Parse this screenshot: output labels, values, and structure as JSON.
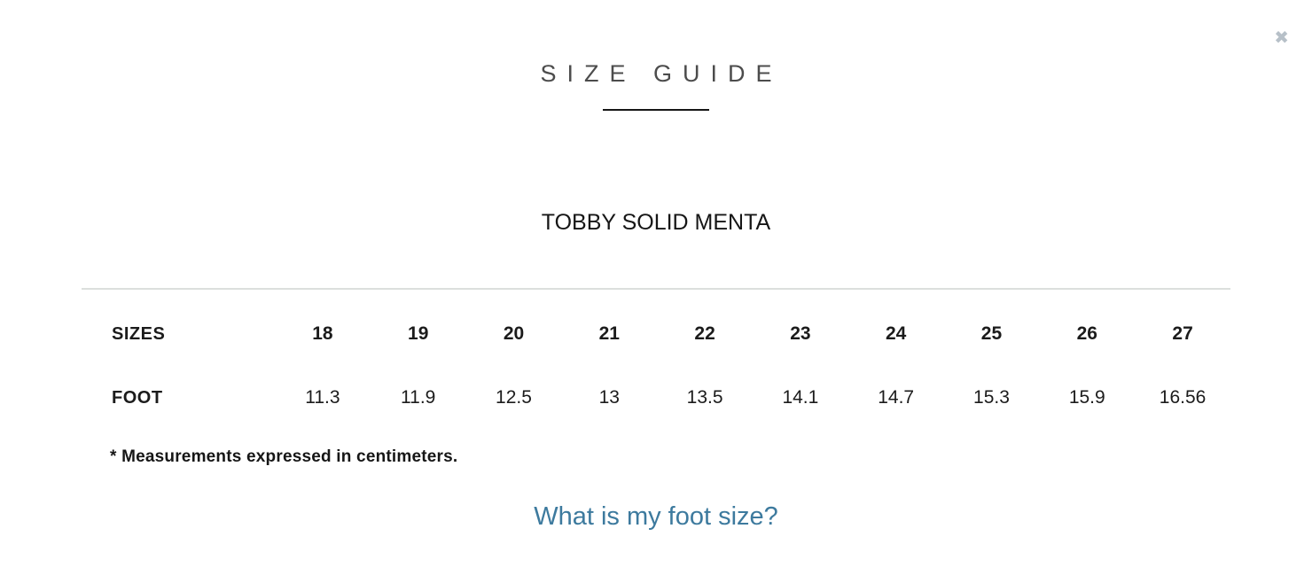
{
  "dialog": {
    "title": "SIZE GUIDE",
    "product_name": "TOBBY SOLID MENTA",
    "note": "* Measurements expressed in centimeters.",
    "link_label": "What is my foot size?"
  },
  "icons": {
    "close": "✖"
  },
  "table": {
    "rows": [
      {
        "label": "SIZES",
        "values": [
          "18",
          "19",
          "20",
          "21",
          "22",
          "23",
          "24",
          "25",
          "26",
          "27"
        ]
      },
      {
        "label": "FOOT",
        "values": [
          "11.3",
          "11.9",
          "12.5",
          "13",
          "13.5",
          "14.1",
          "14.7",
          "15.3",
          "15.9",
          "16.56"
        ]
      }
    ]
  },
  "colors": {
    "link_text": "#3d7a9e",
    "title_text": "#4c4c4c",
    "close_icon": "#b7c0c8",
    "divider": "#dcdfdd",
    "underline": "#161616",
    "body_text": "#1b1b1b"
  }
}
